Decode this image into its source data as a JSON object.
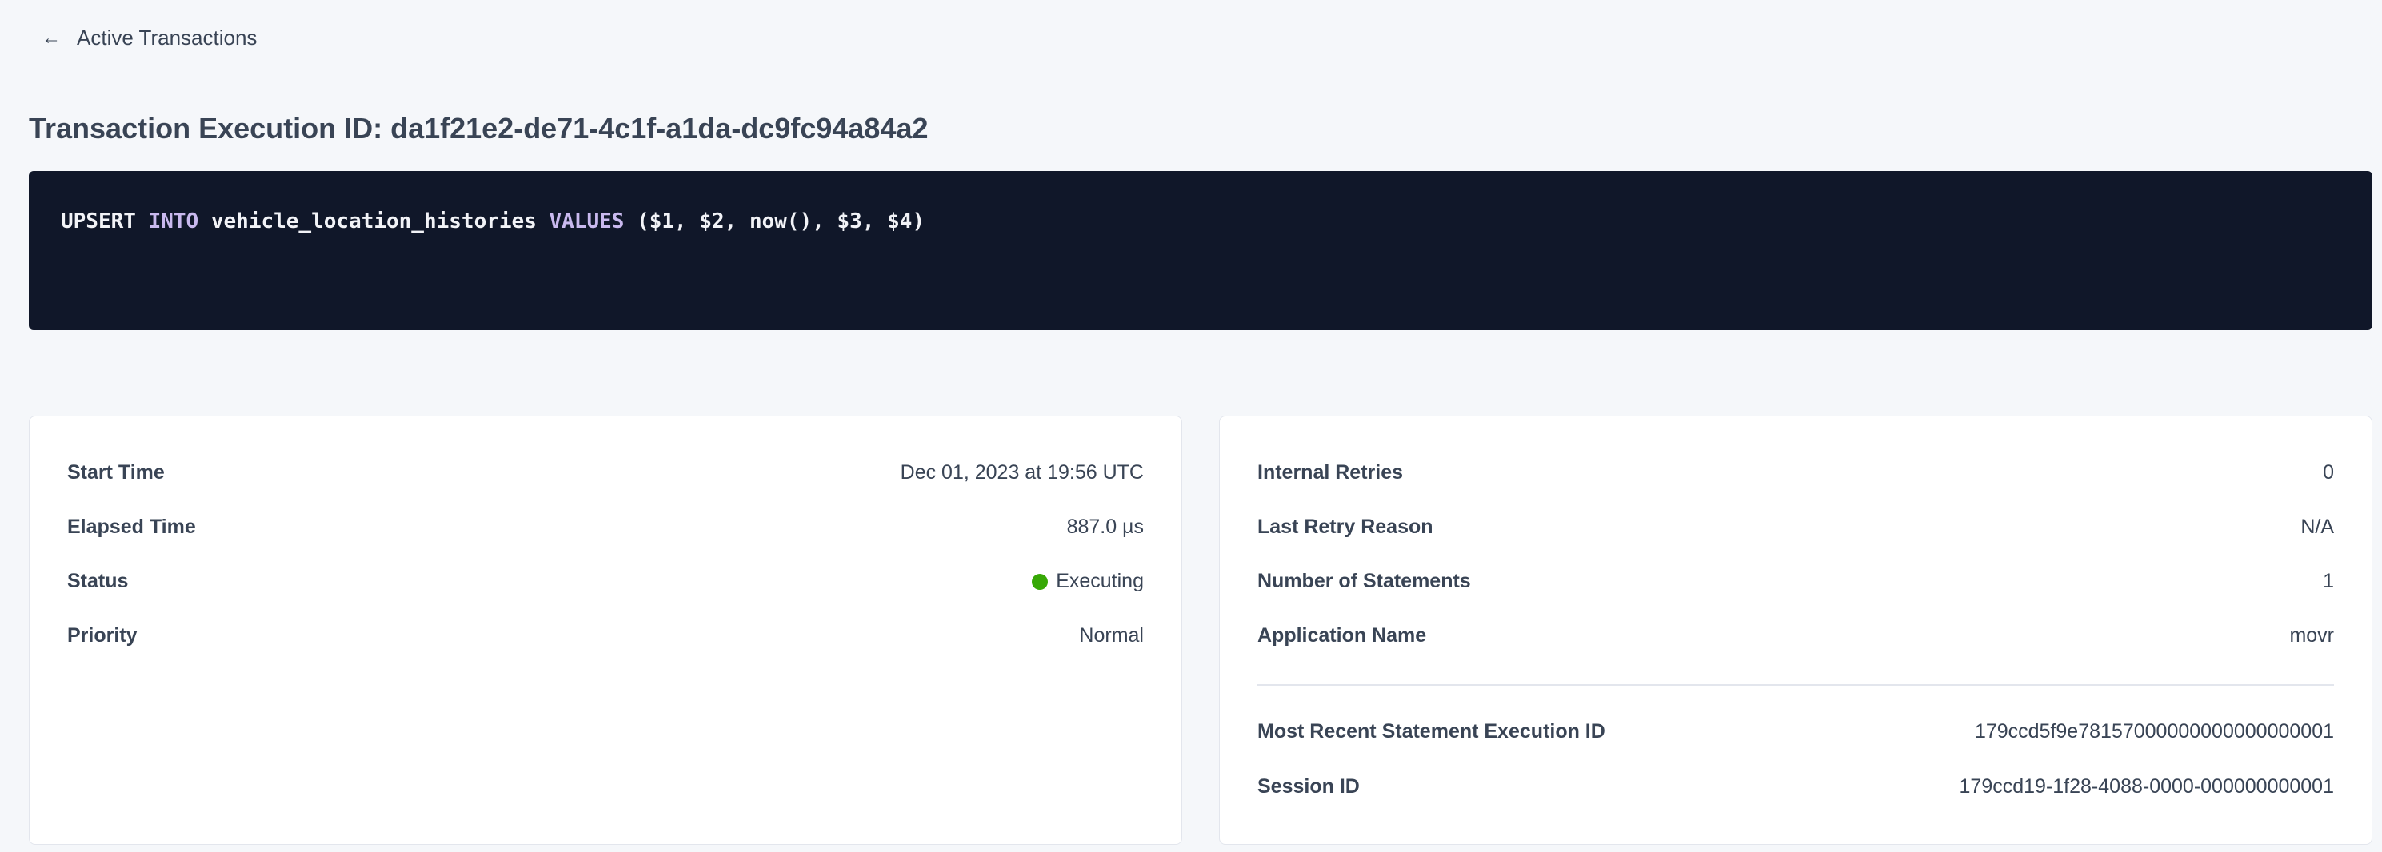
{
  "back_link": {
    "icon": "arrow-left-icon",
    "label": "Active Transactions"
  },
  "title": "Transaction Execution ID: da1f21e2-de71-4c1f-a1da-dc9fc94a84a2",
  "sql": {
    "tokens": [
      {
        "text": "UPSERT ",
        "kw": false
      },
      {
        "text": "INTO",
        "kw": true
      },
      {
        "text": " vehicle_location_histories ",
        "kw": false
      },
      {
        "text": "VALUES",
        "kw": true
      },
      {
        "text": " ($1, $2, now(), $3, $4)",
        "kw": false
      }
    ]
  },
  "left_card": {
    "rows": [
      {
        "label": "Start Time",
        "value": "Dec 01, 2023 at 19:56 UTC"
      },
      {
        "label": "Elapsed Time",
        "value": "887.0 µs"
      },
      {
        "label": "Status",
        "value": "Executing",
        "status_color": "#37a806"
      },
      {
        "label": "Priority",
        "value": "Normal"
      }
    ]
  },
  "right_card": {
    "rows": [
      {
        "label": "Internal Retries",
        "value": "0"
      },
      {
        "label": "Last Retry Reason",
        "value": "N/A"
      },
      {
        "label": "Number of Statements",
        "value": "1"
      },
      {
        "label": "Application Name",
        "value": "movr"
      }
    ],
    "links": [
      {
        "label": "Most Recent Statement Execution ID",
        "value": "179ccd5f9e78157000000000000000001"
      },
      {
        "label": "Session ID",
        "value": "179ccd19-1f28-4088-0000-000000000001"
      }
    ]
  },
  "colors": {
    "link": "#0055ff",
    "code_bg": "#101729",
    "keyword": "#c9b9ee"
  }
}
